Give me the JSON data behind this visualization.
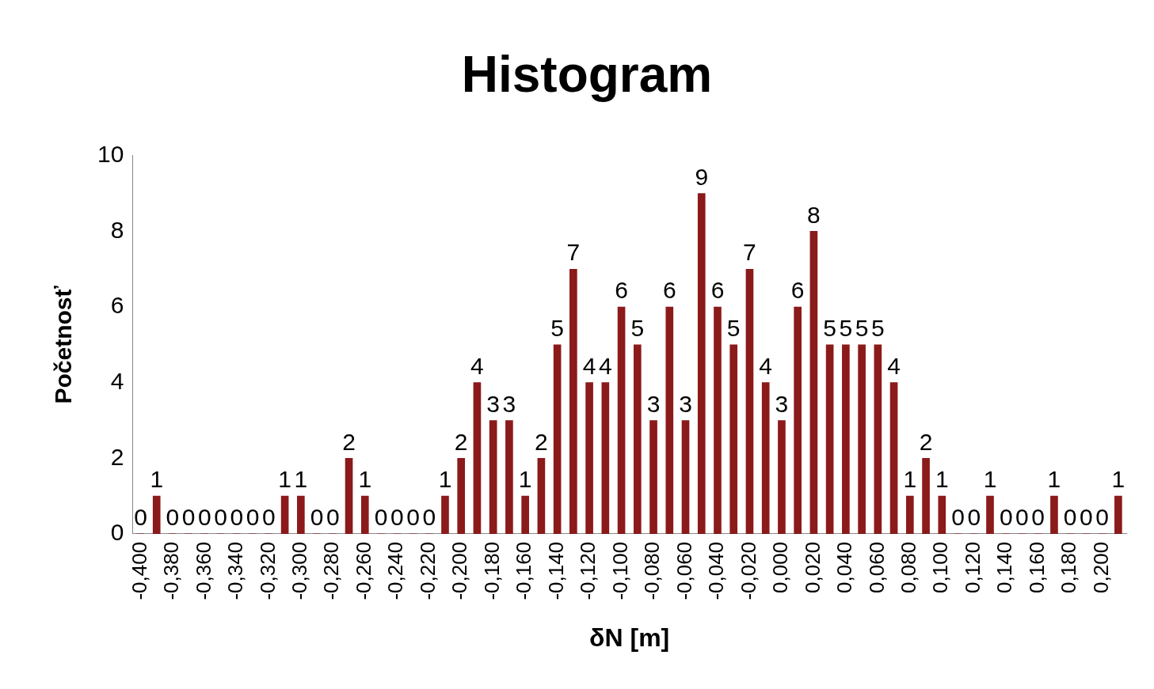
{
  "chart_data": {
    "type": "bar",
    "title": "Histogram",
    "xlabel": "δN [m]",
    "ylabel": "Početnosť",
    "categories": [
      "-0,400",
      null,
      "-0,380",
      null,
      "-0,360",
      null,
      "-0,340",
      null,
      "-0,320",
      null,
      "-0,300",
      null,
      "-0,280",
      null,
      "-0,260",
      null,
      "-0,240",
      null,
      "-0,220",
      null,
      "-0,200",
      null,
      "-0,180",
      null,
      "-0,160",
      null,
      "-0,140",
      null,
      "-0,120",
      null,
      "-0,100",
      null,
      "-0,080",
      null,
      "-0,060",
      null,
      "-0,040",
      null,
      "-0,020",
      null,
      "0,000",
      null,
      "0,020",
      null,
      "0,040",
      null,
      "0,060",
      null,
      "0,080",
      null,
      "0,100",
      null,
      "0,120",
      null,
      "0,140",
      null,
      "0,160",
      null,
      "0,180",
      null,
      "0,200",
      null
    ],
    "values": [
      0,
      1,
      0,
      0,
      0,
      0,
      0,
      0,
      0,
      1,
      1,
      0,
      0,
      2,
      1,
      0,
      0,
      0,
      0,
      1,
      2,
      4,
      3,
      3,
      1,
      2,
      5,
      7,
      4,
      4,
      6,
      5,
      3,
      6,
      3,
      9,
      6,
      5,
      7,
      4,
      3,
      6,
      8,
      5,
      5,
      5,
      5,
      4,
      1,
      2,
      1,
      0,
      0,
      1,
      0,
      0,
      0,
      1,
      0,
      0,
      0,
      1
    ],
    "color": "#8b1a1a",
    "ylim": [
      0,
      10
    ],
    "yticks": [
      0,
      2,
      4,
      6,
      8,
      10
    ],
    "data_labels": true,
    "grid": false,
    "legend": false
  }
}
